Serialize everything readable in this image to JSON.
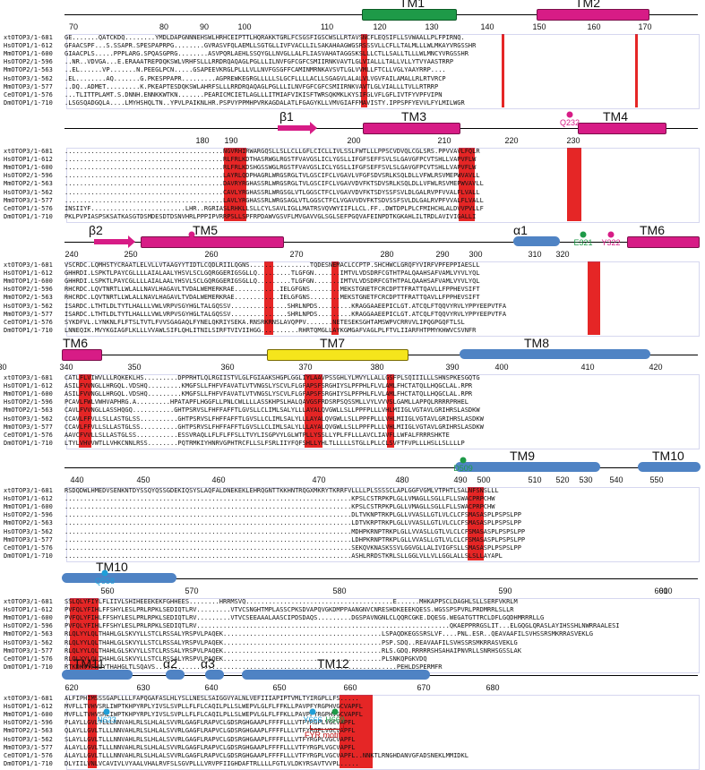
{
  "sequences": [
    "xtOTOP3/1-681",
    "HsOTOP1/1-612",
    "MmOTOP1/1-600",
    "HsOTOP2/1-596",
    "MmOTOP2/1-563",
    "HsOTOP3/1-562",
    "MmOTOP3/1-577",
    "CeOTOP1/1-576",
    "DmOTOP1/1-710"
  ],
  "blocks": [
    {
      "ruler": [
        "70",
        "80",
        "90",
        "100",
        "110",
        "120",
        "130",
        "140",
        "150",
        "160",
        "170"
      ],
      "features": [
        "TM1",
        "TM2"
      ],
      "rows": [
        "GE.......QATCKDQ........YMDLDAPGNNNEHSWLHRHCEIPTTLHQRAKKTGRLFCSGSFIGSCWSLLRTAVSNCFLEQSIFLLSVWAALLPLFPIRNQ.",
        "GFAACSPF...S.SSAPR.SPESPAPRPG........GVRASVFQLAEMLLSGTGLLIVFVACLLILSAKAHAAGWGSRSSSVLLCFLLTALMLLLWLMKAYVRGSSHR",
        "GIAACPLS.....PPPLARG.SPQASGPRG........ASVPQRLAEHLSSQYGLLNVGLLALFLIASVAHATAGGSKSLLLCTLLSALLTLLLWLMNCYVRGSSHR",
        "..NR..VDVGA...E.ERAAATREPDQKSWLVRHFSLLLRRDRQAQAGLPGLLLILNVFGFCGFCSMIIRNKVAVTLGLVIALLLTALLVLLYTVYAASTRRP",
        "..EL......VP.......N.PEEGLPCN.....GSAPEEVKRGLPLLLVLLNVFGSGFFCAMINMRNKAVSVTLGLVVMLLFTCLLVGLYAAYRRP....",
        ".EL........AQ.......G.PKESPPAPR.........AGPREWKEGRGLLLLLSLGCFLLLLACLLSGAGVLALALVLVGVFAILAMALLRLRTVRCP",
        "..DQ..ADMET.........K.PKEAPTESDQKSWLAHRFSLLLRRDRQAQAGLPGLLLILNVFGFCGFCSMIIRNKVAVTLGLVIALLLTVLLRTRRP",
        "...TLITTPLAMT.S.DNNH.ENNKKWTKN.......PEARICMCIETLAGLLLITMIAFVIKISFTWRSQKMKLKYSIFGLVFLGFLIVTFYVPFVIPN",
        ".LSGSQADGQLA....LMYHSHQLTN..YPVLPAIKNLHR.PSPVYPPMHPVRKAGDALATLFGAGYKLLVMVGIAFFMAVISTY.IPPSPFYEVVLFYLMILWGR"
      ]
    },
    {
      "ruler": [
        "180",
        "190",
        "200",
        "210",
        "220",
        "230"
      ],
      "features": [
        "β1",
        "TM3",
        "TM4"
      ],
      "rows": [
        "..........................................NGVRHIRWARGQSLLSLLCLLGFLCICLLIVLSSLFWTLLLPPSCVDVQLCGLSRS.PPVVAVLFQLR",
        "..........................................RLFRLKDTHASRWGLRGSTFVAVGSLICLYGSLLIFGFSEFFSVLSLGAVGFPCVTSHLLVAPVFLW",
        "..........................................RLFRLKDSHGSSWGLRGSTFVAVGSLICLYGSLLIFGFSEFFSVLSLGAVGFPCVTSHLLVAPVFLW",
        "..........................................LAYRLQDPHAGRLWRGSRGLTVLGSCIFCLVGAVLVFGFSDVSRLKSQLDLLVFWLRSVMEPWVAVLL",
        "..........................................DAVRYRGHASSRLWRGSRGLTVLGSCIFCLVGAVVDVFKTSDVSRLKSQLDLLVFWLRSVMEPWVAVLL",
        "..........................................CAVLYRGHASSRLWRGSGLVTLGGSCTFCLVGAVVDVFKTSDYSSFSVLDLGALRVPFVVALFLVALL",
        "..........................................LAVLYRGHASSRLWRGSAGLVTLGGSCTFCLVGAVVDVFKTSDVSSFSVLDLGALRVPFVVALFLVALL",
        "INSIIYF.........................LHR..RGRIASLRHKLLSLLCYLSAVLIGLLMATRSVQVWYIIFLLCL.FF..DWTDPLPLCFMIHCHLALDVVPVLLF",
        "PKLPVPIASPSKSATKASGTDSMDESDTDSNVHRLPPPIPVRRPSLLSPFRPDAWVGSVFLMVGAVVGLSGLSEFPGQVAFEINPDTKGKAHLILTRDLAVIVIGALLI"
      ]
    },
    {
      "ruler": [
        "240",
        "250",
        "260",
        "270",
        "280",
        "290",
        "300",
        "310",
        "320"
      ],
      "features": [
        "β2",
        "TM5",
        "α1",
        "TM6"
      ],
      "rows": [
        "VSCRDC.LQMHSTYCRAATLELVLLVTAAGYYTIDTLCQDLRIILQGNS................TQDESNEMACLCCPTP.SHCHWCLGRQFYVIRFVPFEPPIAESLL",
        "GHHRDI.LSPKTLPAYCGLLLLAIALAALYHSVLSCLGQRGGERIGSGLLQ.........TLGFGN.......IMTVLVDSDRFCGTHTPALQAAHSAFVAMLVYVLYQL",
        "GHHRDI.LSPKTLPAYCGLLLLAIALAALYHSVLSCLGQRGGERIGSGLLQ.........TLGFGN.......IMTVLVDSDRFCGTHTPALQAAHSAFVAMLVYVLYQL",
        "RHCRDC.LQVTNRTLLWLALLNAVLHAGAVLTVDALWEMERKRAE............IELGFGNS........MEKSTGNETFCRCDPTTFRATTQAVLLFPPHEVSIFT",
        "RHCRDC.LQVTNRTLLWLALLNAVLHAGAVLTVDALWEMERKRAE............IELGFGNS........MEKSTGNETFCRCDPTTFRATTQAVLLFPPHEVSIFT",
        "ISARDC.LTHTLDLTYTLHALLLVWLVRPVSGYHGLTALGQSSV...............SHRLNPDS.........KRAGGAAEEPICLGT.ATCQLFTQQVYRVLYPPYEEPVTFA",
        "ISARDC.LTHTLDLTYTLHALLLVWLVRPVSGYHGLTALGQSSV...............SHRLNPDS.........KRAGGAAEEPICLGT.ATCQLFTQQVYRVLYPPYEEPVTFA",
        "SYKDFVL.LYNKNLFLFTSLTVTLFVVSGAGAQLFYNELQKRIYSEKA.RNSRKRNSLAVQPPV.......NETESEKSGHTAMSWPVCRRVVLIPQGPGQFTLSL",
        "LNNEQIK.MVYKGIAGFLKLLLVVAWLSIFLQHLITNILSIRFTVIVIIHGG..........RHRTQMGLLAYKGMGAFVAGLPLFTVLIIARFHTPMYKHWVCSVNFR"
      ]
    },
    {
      "ruler": [
        "340",
        "350",
        "360",
        "370",
        "380",
        "390",
        "400",
        "410",
        "420",
        "430"
      ],
      "features": [
        "TM6",
        "TM7",
        "TM8"
      ],
      "rows": [
        "CATLFLVIWVLLLRQKEKLHS.........DPPRHTLQLRGIISTVLGLFGIAAKSHGPLGGLIYLAAVPSSGHLYLMVYLLALLGSFPLSQIIILLLSHNSPKESGQTG",
        "ASILFVVNGLLHRGQL.VDSHQ.........KMGFSLLFHFVFAVATLVTVNGSLYSCVLFLGFAPSFSRGHIYSLPFPHLFLVLAMLFHCTATQLLHQGCLAL.RPR",
        "ASILFVVNGLLHRGQL.VDSHQ.........KMGFSLLFHFVFAVATLVTVNGSLYSCVLFLGFAPSFSRGHIYSLPFPHLFLVLAMLFHCTATQLLHQGCLAL.RPR",
        "PCAVLFWLVWHVAPHRG.A.........HPATAPFLHGGFLLPNLCWLLLLASSKHPSLHALQAVGSFRDSRPSQSSMLLVYLVVVSLGAMLLAPPQLRRRRPRHEL",
        "CAVLFVVNGLLASSHQGQ...........GHTPSRVSLFHFFAFFTLGVSLLCLIMLSALYLLLAYALQVGWLLSLLPPFPLLLVHLMIIGLVGTAVLGRIHRSLASDKW",
        "CCAVLFFVLLSLLASTGLSS..........GHTPSRVSLFHFFAFFTLGVSLLCLIMLSALYLLLAYALQVGWLLSLLPPFPLLLVHLMIIGLVGTAVLGRIHRSLASDKW",
        "CCAVLFFVLLSLLASTGLSS..........GHTPSRVSLFHFFAFFTLGVSLLCLIMLSALYLLLAYALQVGWLLSLLPPFPLLLVHLMIIGLVGTAVLGRIHRSLASDKW",
        "AAVCFVVLLSLLASTGLSS...........ESSVRAQLLFLFLFFSLLTVYLISGPVYLGLWTPLLYSSLLYPLFFLLLAVCLIAVFLLWFALFRRRSHKTE",
        "LTYLVHVVWTLLVHKCNNLRSS........PQTRMKIYHNRVGPHTRCFLLSLFSRLIIYFQFSHLLYHLTLLLLLSTGLLPLLCLSVFTFVPLLLHSLLSLLLLP"
      ]
    },
    {
      "ruler": [
        "440",
        "450",
        "460",
        "470",
        "480",
        "490",
        "500",
        "510",
        "520",
        "530",
        "540",
        "550"
      ],
      "features": [
        "TM9",
        "TM10"
      ],
      "rows": [
        "RSDQDWLHMEDVSENKNTDYSSQYQSSGDEKIQSYSLAQFALDNEKEKLEHRQGNTTKKHNTRQGXMKRYTKRRFVLLLLPLSSSSCLAPLGGFVGMLVTPHTLSALNFSNSLLL",
        "............................................................................KPSLCSTRPKPLGLLVMAGLLSGLLFLLSWACPRPCHW",
        "............................................................................KPSLCSTRPKPLGLLVMAGLLSGLLFLLSWACPRPCHW",
        "............................................................................DLTVKNPTRKPLGLLVVASLLGTLVLCLCFSMASASPLPSPSLPP",
        "............................................................................LDTVKRPTRKPLGLLVVASLLGTLVLCLCFSMASASPLPSPSLPP",
        "............................................................................MDHPKRNPTRKPLGLLVVASLLGTLVLCLCFSMASASPLPSPSLPP",
        "............................................................................LDHPKRNPTRKPLGLLVVASLLGTLVLCLCFSMASASPLPSPSLPP",
        "............................................................................SEKQVKNASKSSVLGGVGLLALIVIGFSLLSMASASPLPSPSLPP",
        "............................................................................ASHLRRDSTKRLSLLGGLVLLVLLGGLALLSLSLLAYAPL"
      ]
    },
    {
      "ruler": [
        "560",
        "570",
        "580",
        "590",
        "600",
        "610"
      ],
      "features": [
        "TM10"
      ],
      "rows": [
        "SSLQLYFIYLFLIIVLSHIHEEEKEKFGHHEES........HRRMSVQ.......................................E......MHKAPPSCLDAGHLSLLSERFVKRLM",
        "PVFQLYFIHLFFSHYLESLPRLRPKLSEDIQTLRV.........VTVCSNGHTMPLASSCPKSDVAPQVGKDMPPAANGNVCNRESHDKEEEKQESS.WGSSPSPVRLPRDMRRLSLLR",
        "PVFQLYFIHLFFSHYLESLPRLRPKLSEDIQTLRV.........VTVCSEEAAALAASCIPDSDAQS.........DGSPAVNGNLCLQQRCGKE.DQESG.WEGATGTTRCLDFLGQDHMRRRLLG",
        "PVFQLYFIHLFFSHYLESLPRLRPKLSEDIQTLRV...................................................................QKAEPPRRGSLIT...ELGQGLQRASLAYIHSSHLNWRRAALESI",
        "RLQLYYLQLTHAHLGLSKVYLLSTCLRSSALYRSPVLPAQEK..........................................LSPAQDKEGSSRSLVF....PNL.ESR..QEAVAAFILSVHSSRSMKRRASVEKLG",
        "RLQLYYLQLTHAHLGLSKVYLLSTCLRSSALYRSPVLPAQEK..........................................PSP.SDQ..REAVAAFILSVHSSRSMKRRASVEKLG",
        "RLQLYYLQLTHAHLGLSKVYLLSTCLRSSALYRSPVLPAQEK..........................................RLS.GDQ.RRRRRSHSAHAIPNVRLLSNRHSGSSLAK",
        "RLQLYYLQLTHAHLGLSKVYLLSTCLRSSALYRSPVLPAQEK..........................................PLSNKQPGKVDQ",
        "RTKDKVYFHLYTHAHGLTLSQAVS................................................................PEHLDSPERMFR"
      ]
    },
    {
      "ruler": [
        "620",
        "630",
        "640",
        "650",
        "660",
        "670",
        "680"
      ],
      "features": [
        "TM11",
        "α2",
        "α3",
        "TM12"
      ],
      "rows": [
        "ALFIPHIMSSSGAPLLLLFAPQGAFASLHLYSLLNESLSAIGGVYALNLVEFIIIAPIPTVMLTYIRGPLLFS.....",
        "MVFLLTVHVSRLIWPTKHPYRPLYIVSLSVPLLFLFLCAQILPLLSLWEPVLGLFLFFKLLPAVPFYRGPHVGCVAPFL",
        "MVFLLTVHVSRLIWPTKHPYRPLYIVSLSVPLLFLFLCAQILPLLSLWEPVLGLFLFFKLLPAVPFYRGPHVGCVAPFL",
        "PLAYLLGVLTLLLNNVAHLRLSLHLALSVVRLGAGFLRAPVCLGDSRGHGAAPLFFFFLLLVTFYRGPLVGCVAPFL",
        "QLAYLLGVLTLLLNNVAHLRLSLHLALSVVRLGAGFLRAPVCLGDSRGHGAAPLFFFFLLLVTFYRGPLVGCVAPFL",
        "SLAYLLGVLTLLLNNVAHLRLSLHLALSVVRLGAGFLRAPVCLGDSRGHGAAPLFFFFLLLVTFYRGPLVGCVAPFL",
        "ALAYLLGVLTLLLNNVAHLRLSLHLALSVVRLGAGFLRAPVCLGDSRGHGAAPLFFFFLLLVTFYRGPLVGCVAPFL",
        "ALAYLLGVLTLLLNNVAHLRLSLHLALSVVRLGAGFLRAPVCLGDSRGHGAAPLFFFFLLLVTFYRGPLVGCVAPFL..NNKTLRNGHDANVGFADSNEKLMMIDKL",
        "DLYIILVNLVCAVIVLVYAALVHALRVFSLSGVPLLLVRVPFIIGHDAFTRLLLLFGTLVLDKYRSAVTVVPL....."
      ]
    }
  ],
  "residues": [
    "Q232",
    "D262",
    "E321",
    "Y322",
    "D509",
    "Q558",
    "N623",
    "Y666",
    "H669"
  ],
  "motif": "FYR motif",
  "colors": {
    "pink": "#d71c86",
    "green": "#1e9a48",
    "cyan": "#1f9fd8",
    "red": "#c01010"
  }
}
